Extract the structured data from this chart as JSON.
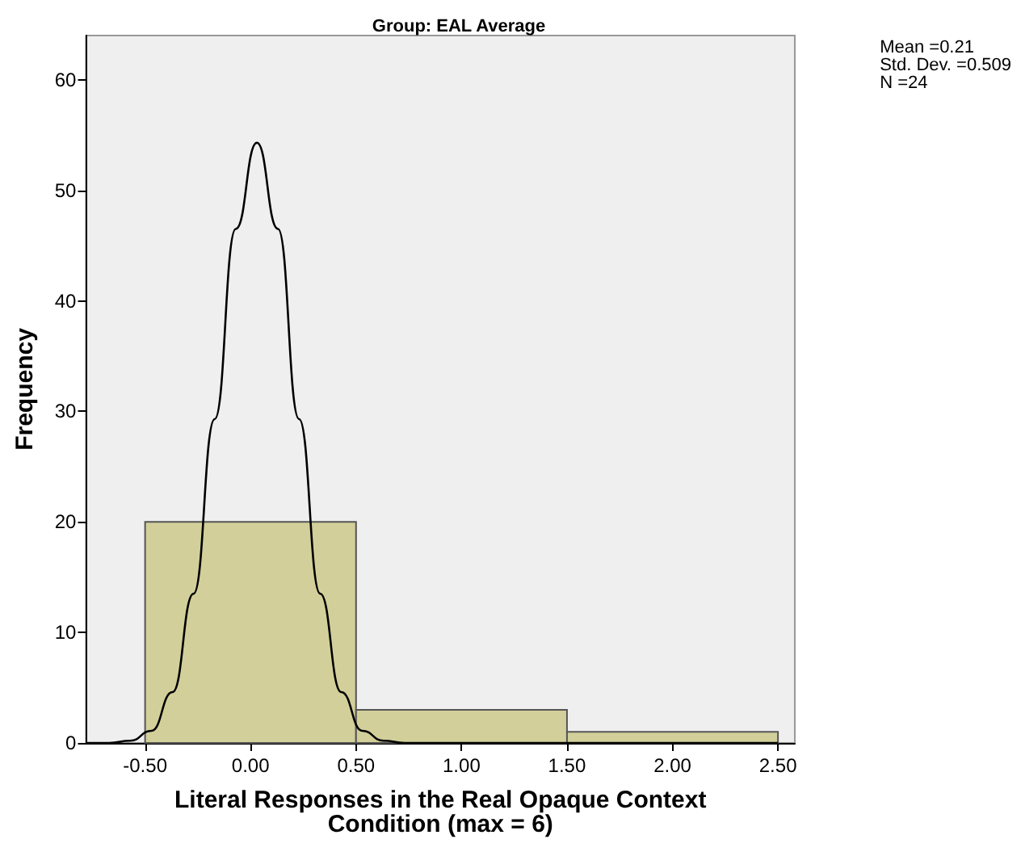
{
  "chart_data": {
    "type": "histogram",
    "title": "Group: EAL Average",
    "xlabel": "Literal Responses in the Real Opaque Context\nCondition (max = 6)",
    "ylabel": "Frequency",
    "bins": [
      -0.5,
      0.5,
      1.5,
      2.5
    ],
    "values": [
      20,
      3,
      1
    ],
    "color": "#d3cf9a",
    "series": [
      {
        "type": "line",
        "color": "#000000",
        "x": [
          -0.78,
          -0.67,
          -0.57,
          -0.47,
          -0.37,
          -0.27,
          -0.17,
          -0.07,
          0.03,
          0.13,
          0.23,
          0.33,
          0.43,
          0.53,
          0.63,
          0.73,
          1.0,
          1.5,
          2.0,
          2.5
        ],
        "values": [
          0,
          0,
          0.2,
          1.1,
          4.6,
          13.5,
          29.3,
          46.5,
          54.3,
          46.5,
          29.3,
          13.5,
          4.6,
          1.1,
          0.2,
          0,
          0,
          0,
          0,
          0
        ]
      }
    ],
    "xlim": [
      -0.78,
      2.58
    ],
    "xticks": [
      {
        "value": -0.5,
        "label": "-0.50"
      },
      {
        "value": 0,
        "label": "0.00"
      },
      {
        "value": 0.5,
        "label": "0.50"
      },
      {
        "value": 1,
        "label": "1.00"
      },
      {
        "value": 1.5,
        "label": "1.50"
      },
      {
        "value": 2,
        "label": "2.00"
      },
      {
        "value": 2.5,
        "label": "2.50"
      }
    ],
    "ylim": [
      0,
      64
    ],
    "yticks": [
      0,
      10,
      20,
      30,
      40,
      50,
      60
    ],
    "grid": false,
    "legend": false,
    "marker": "none",
    "line_style": "solid",
    "annotations": [
      "Mean =0.21\nStd. Dev. =0.509\nN =24"
    ]
  }
}
